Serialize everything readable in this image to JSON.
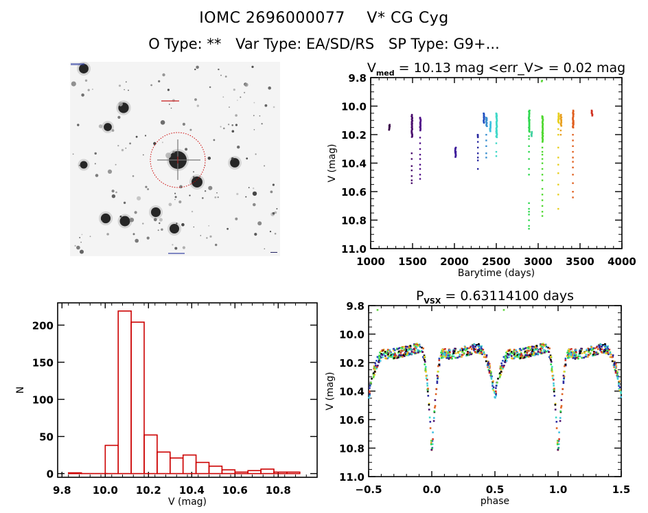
{
  "header": {
    "object_id": "IOMC 2696000077",
    "star_name": "V* CG Cyg",
    "o_type": "O Type: **",
    "var_type": "Var Type: EA/SD/RS",
    "sp_type": "SP Type: G9+..."
  },
  "finder_image": {
    "description": "sky finder chart, inverted grayscale",
    "target_marker": "red dashed circle",
    "marker_color": "#cc0000"
  },
  "chart_data": [
    {
      "id": "light-curve",
      "type": "scatter",
      "title_main": "V",
      "title_sub": "med",
      "title_rest": " = 10.13 mag <err_V> = 0.02 mag",
      "xlabel": "Barytime (days)",
      "ylabel": "V (mag)",
      "xlim": [
        1000,
        4000
      ],
      "ylim": [
        9.8,
        11.0
      ],
      "y_inverted": true,
      "xticks": [
        1000,
        1500,
        2000,
        2500,
        3000,
        3500,
        4000
      ],
      "xtick_labels": [
        "1000",
        "1500",
        "2000",
        "2500",
        "3000",
        "3500",
        "4000"
      ],
      "yticks": [
        9.8,
        10.0,
        10.2,
        10.4,
        10.6,
        10.8,
        11.0
      ],
      "ytick_labels": [
        "9.8",
        "10.0",
        "10.2",
        "10.4",
        "10.6",
        "10.8",
        "11.0"
      ],
      "color_encoding": "time (purple → blue → cyan → green → yellow → orange → red)",
      "clusters": [
        {
          "t": 1220,
          "vmin": 10.13,
          "vmax": 10.17,
          "faint": [],
          "color": "#3a0a4a"
        },
        {
          "t": 1490,
          "vmin": 10.06,
          "vmax": 10.22,
          "faint": [
            10.33,
            10.37,
            10.42,
            10.45,
            10.49,
            10.52,
            10.54
          ],
          "color": "#4b0f6e"
        },
        {
          "t": 1590,
          "vmin": 10.08,
          "vmax": 10.17,
          "faint": [
            10.22,
            10.26,
            10.3,
            10.34,
            10.37,
            10.41,
            10.44,
            10.48,
            10.51
          ],
          "color": "#52128a"
        },
        {
          "t": 2010,
          "vmin": 10.29,
          "vmax": 10.36,
          "faint": [],
          "color": "#3c1a9a"
        },
        {
          "t": 2280,
          "vmin": 10.2,
          "vmax": 10.22,
          "faint": [
            10.25,
            10.29,
            10.33,
            10.36,
            10.38,
            10.44
          ],
          "color": "#2a2aa0"
        },
        {
          "t": 2350,
          "vmin": 10.05,
          "vmax": 10.12,
          "faint": [],
          "color": "#2050c0"
        },
        {
          "t": 2380,
          "vmin": 10.08,
          "vmax": 10.14,
          "faint": [
            10.2,
            10.24,
            10.28,
            10.33,
            10.36
          ],
          "color": "#3a90d0"
        },
        {
          "t": 2425,
          "vmin": 10.11,
          "vmax": 10.18,
          "faint": [],
          "color": "#40c0e0"
        },
        {
          "t": 2500,
          "vmin": 10.05,
          "vmax": 10.22,
          "faint": [
            10.26,
            10.32,
            10.35
          ],
          "color": "#40d8c8"
        },
        {
          "t": 2890,
          "vmin": 10.03,
          "vmax": 10.18,
          "faint": [
            10.21,
            10.23,
            10.28,
            10.32,
            10.37,
            10.44,
            10.48,
            10.68,
            10.72,
            10.74,
            10.76,
            10.8,
            10.84,
            10.86
          ],
          "color": "#30d850"
        },
        {
          "t": 2920,
          "vmin": 10.18,
          "vmax": 10.21,
          "faint": [],
          "color": "#40d0a0"
        },
        {
          "t": 3040,
          "vmin": 9.82,
          "vmax": 9.83,
          "faint": [],
          "color": "#60d840"
        },
        {
          "t": 3050,
          "vmin": 10.07,
          "vmax": 10.25,
          "faint": [
            10.29,
            10.32,
            10.34,
            10.37,
            10.4,
            10.44,
            10.48,
            10.52,
            10.58,
            10.62,
            10.66,
            10.7,
            10.74,
            10.77
          ],
          "color": "#50d830"
        },
        {
          "t": 3240,
          "vmin": 10.05,
          "vmax": 10.12,
          "faint": [
            10.16,
            10.2,
            10.29,
            10.36,
            10.41,
            10.47,
            10.55,
            10.62,
            10.72
          ],
          "color": "#e8d020"
        },
        {
          "t": 3270,
          "vmin": 10.06,
          "vmax": 10.14,
          "faint": [
            10.17,
            10.2
          ],
          "color": "#e8a020"
        },
        {
          "t": 3415,
          "vmin": 10.03,
          "vmax": 10.15,
          "faint": [
            10.2,
            10.24,
            10.28,
            10.32,
            10.36,
            10.39,
            10.43,
            10.48,
            10.54,
            10.6,
            10.64
          ],
          "color": "#e06020"
        },
        {
          "t": 3640,
          "vmin": 10.03,
          "vmax": 10.07,
          "faint": [],
          "color": "#d03020"
        }
      ]
    },
    {
      "id": "magnitude-histogram",
      "type": "bar",
      "xlabel": "V (mag)",
      "ylabel": "N",
      "xlim": [
        9.78,
        10.98
      ],
      "ylim": [
        -5,
        230
      ],
      "xticks": [
        9.8,
        10.0,
        10.2,
        10.4,
        10.6,
        10.8
      ],
      "xtick_labels": [
        "9.8",
        "10.0",
        "10.2",
        "10.4",
        "10.6",
        "10.8"
      ],
      "yticks": [
        0,
        50,
        100,
        150,
        200
      ],
      "ytick_labels": [
        "0",
        "50",
        "100",
        "150",
        "200"
      ],
      "bar_color": "#cc0000",
      "bin_width": 0.06,
      "bin_starts": [
        9.83,
        9.89,
        9.95,
        10.0,
        10.06,
        10.12,
        10.18,
        10.24,
        10.3,
        10.36,
        10.42,
        10.48,
        10.54,
        10.6,
        10.66,
        10.72,
        10.78,
        10.84
      ],
      "values": [
        1,
        0,
        0,
        38,
        219,
        204,
        52,
        29,
        21,
        25,
        15,
        10,
        5,
        2,
        4,
        6,
        2,
        2
      ]
    },
    {
      "id": "phased-light-curve",
      "type": "scatter",
      "title_main": "P",
      "title_sub": "VSX",
      "title_rest": " = 0.63114100 days",
      "xlabel": "phase",
      "ylabel": "V (mag)",
      "xlim": [
        -0.5,
        1.5
      ],
      "ylim": [
        9.8,
        11.0
      ],
      "y_inverted": true,
      "period_days": 0.631141,
      "xticks": [
        -0.5,
        0.0,
        0.5,
        1.0,
        1.5
      ],
      "xtick_labels": [
        "−0.5",
        "0.0",
        "0.5",
        "1.0",
        "1.5"
      ],
      "yticks": [
        9.8,
        10.0,
        10.2,
        10.4,
        10.6,
        10.8,
        11.0
      ],
      "ytick_labels": [
        "9.8",
        "10.0",
        "10.2",
        "10.4",
        "10.6",
        "10.8",
        "11.0"
      ],
      "model": {
        "max_mag": 10.12,
        "primary_min": {
          "phase": 0.0,
          "depth_mag": 10.86,
          "half_width": 0.09
        },
        "secondary_min": {
          "phase": 0.5,
          "depth_mag": 10.45,
          "half_width": 0.09
        }
      },
      "outliers": [
        {
          "phase": -0.43,
          "v": 9.83
        },
        {
          "phase": 0.57,
          "v": 9.83
        }
      ],
      "palette": [
        "#4b0f6e",
        "#2a2aa0",
        "#2050c0",
        "#40c0e0",
        "#40d8c8",
        "#30d850",
        "#60d840",
        "#e8d020",
        "#e8a020",
        "#e06020",
        "#d03020",
        "#000000"
      ]
    }
  ]
}
